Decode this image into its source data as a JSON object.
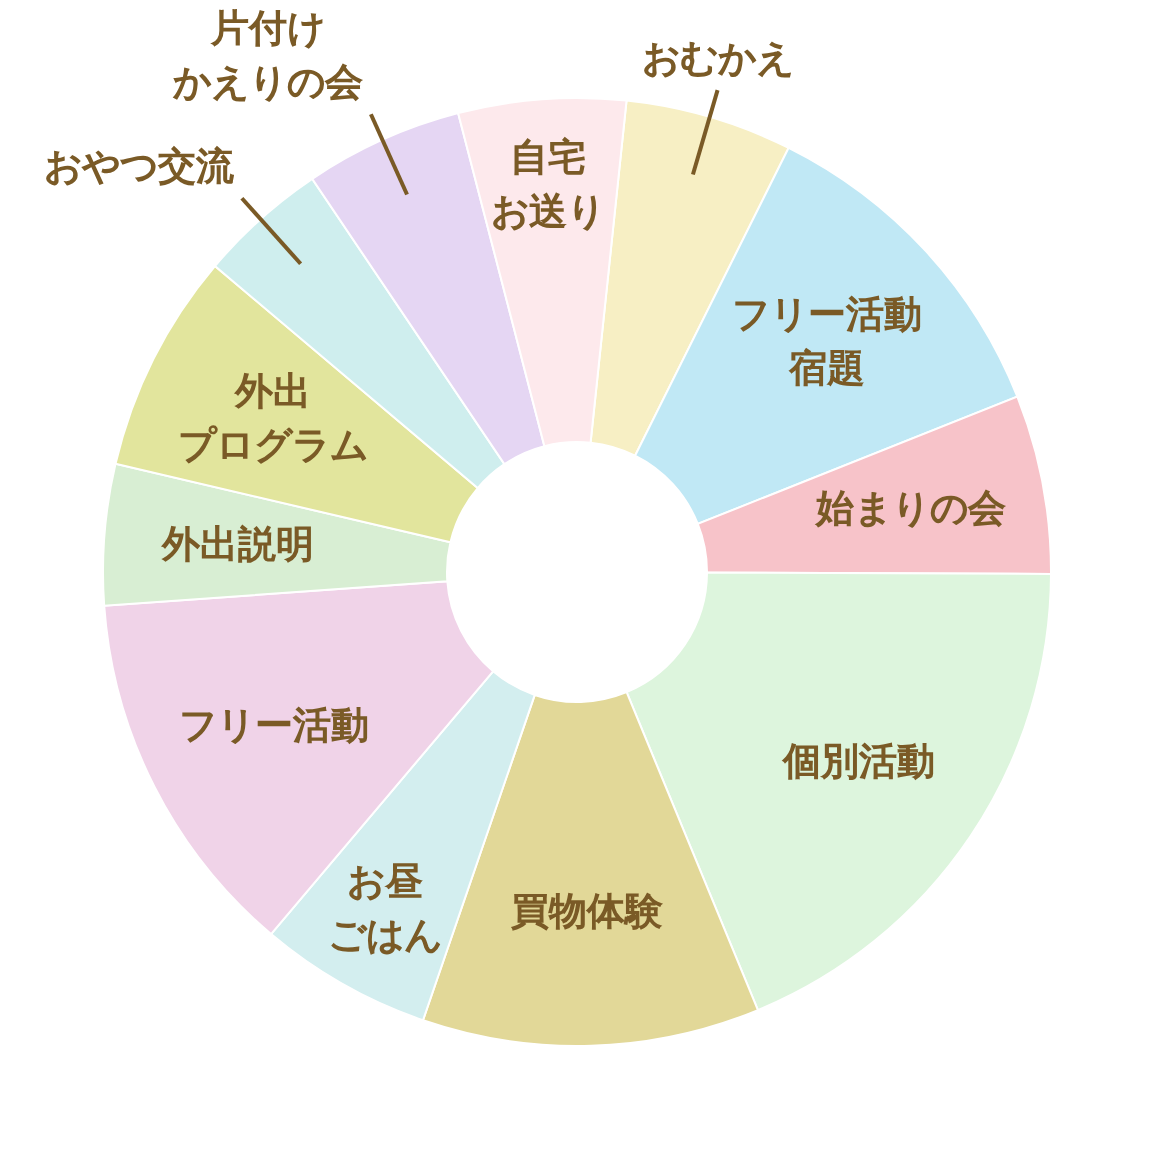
{
  "chart_data": {
    "type": "donut",
    "categories": [
      "おむかえ",
      "フリー活動宿題",
      "始まりの会",
      "個別活動",
      "買物体験",
      "お昼ごはん",
      "フリー活動",
      "外出説明",
      "外出プログラム",
      "おやつ交流",
      "片付けかえりの会",
      "自宅お送り"
    ],
    "values": [
      5.7,
      11.6,
      6.1,
      18.7,
      11.5,
      5.9,
      12.7,
      4.8,
      7.5,
      4.4,
      5.4,
      5.7
    ],
    "colors": [
      "#f7efc4",
      "#c0e8f5",
      "#f7c3c9",
      "#ddf5dd",
      "#e2d898",
      "#d3eeef",
      "#f0d3e8",
      "#d8eed3",
      "#e2e59d",
      "#cfeeee",
      "#e5d6f3",
      "#fde9ec"
    ]
  }
}
